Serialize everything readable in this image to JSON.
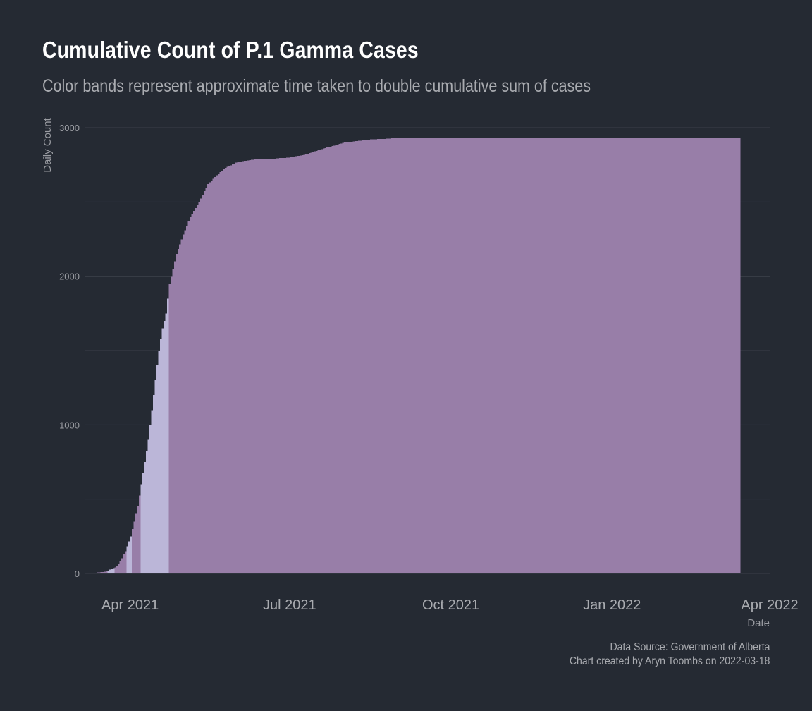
{
  "chart_data": {
    "type": "bar",
    "title": "Cumulative Count of P.1 Gamma Cases",
    "subtitle": "Color bands represent approximate time taken to double cumulative sum of cases",
    "xlabel": "Date",
    "ylabel": "Daily Count",
    "y_ticks": [
      0,
      1000,
      2000,
      3000
    ],
    "ylim": [
      0,
      3000
    ],
    "x_ticks": [
      {
        "date": "2021-04-01",
        "label": "Apr 2021"
      },
      {
        "date": "2021-07-01",
        "label": "Jul 2021"
      },
      {
        "date": "2021-10-01",
        "label": "Oct 2021"
      },
      {
        "date": "2022-01-01",
        "label": "Jan 2022"
      },
      {
        "date": "2022-04-01",
        "label": "Apr 2022"
      }
    ],
    "xlim": [
      "2021-03-06",
      "2022-04-01"
    ],
    "grid": true,
    "colors": {
      "band_dark": "#987ea8",
      "band_light": "#bbb6d8",
      "background": "#252a33",
      "grid": "#3a3f48"
    },
    "bands": [
      {
        "start": "2021-03-12",
        "end": "2021-03-19",
        "color": "band_dark"
      },
      {
        "start": "2021-03-19",
        "end": "2021-03-23",
        "color": "band_light"
      },
      {
        "start": "2021-03-23",
        "end": "2021-03-30",
        "color": "band_dark"
      },
      {
        "start": "2021-03-30",
        "end": "2021-04-02",
        "color": "band_light"
      },
      {
        "start": "2021-04-02",
        "end": "2021-04-07",
        "color": "band_dark"
      },
      {
        "start": "2021-04-07",
        "end": "2021-04-23",
        "color": "band_light"
      },
      {
        "start": "2021-04-23",
        "end": "2022-03-14",
        "color": "band_dark"
      }
    ],
    "series": [
      {
        "x": [
          "2021-03-12",
          "2021-03-16",
          "2021-03-19",
          "2021-03-23",
          "2021-03-26",
          "2021-03-29",
          "2021-04-01",
          "2021-04-03",
          "2021-04-05",
          "2021-04-07",
          "2021-04-09",
          "2021-04-11",
          "2021-04-13",
          "2021-04-15",
          "2021-04-17",
          "2021-04-19",
          "2021-04-21",
          "2021-04-22",
          "2021-04-23",
          "2021-04-25",
          "2021-04-27",
          "2021-05-01",
          "2021-05-05",
          "2021-05-10",
          "2021-05-15",
          "2021-05-20",
          "2021-05-25",
          "2021-06-01",
          "2021-06-10",
          "2021-06-20",
          "2021-07-01",
          "2021-07-10",
          "2021-07-20",
          "2021-08-01",
          "2021-08-15",
          "2021-09-01",
          "2021-10-01",
          "2022-03-14"
        ],
        "y": [
          5,
          10,
          20,
          40,
          80,
          150,
          250,
          350,
          450,
          600,
          750,
          900,
          1100,
          1300,
          1500,
          1650,
          1750,
          1850,
          1950,
          2050,
          2150,
          2280,
          2400,
          2500,
          2620,
          2680,
          2730,
          2770,
          2785,
          2790,
          2800,
          2820,
          2860,
          2900,
          2920,
          2930,
          2930,
          2930
        ]
      }
    ]
  },
  "caption": {
    "source": "Data Source: Government of Alberta",
    "credit": "Chart created by Aryn Toombs on 2022-03-18"
  }
}
